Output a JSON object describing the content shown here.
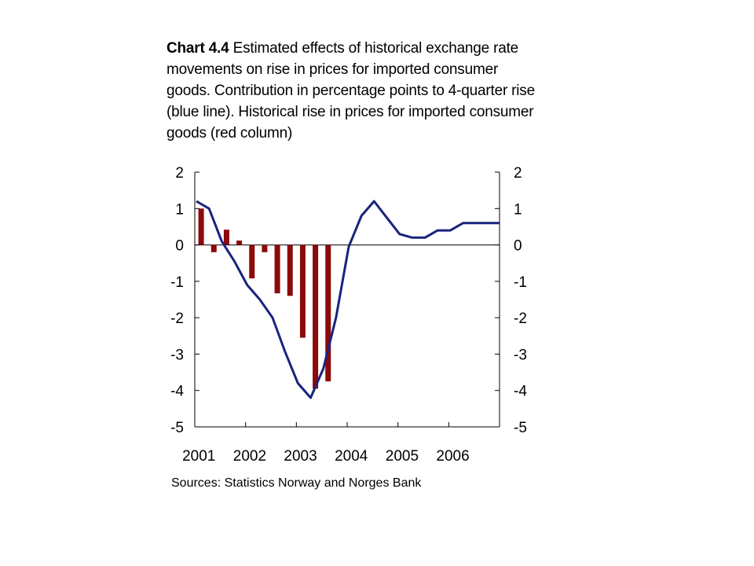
{
  "title": {
    "prefix": "Chart 4.4",
    "text": " Estimated effects of historical exchange rate movements on rise in prices for imported consumer goods. Contribution in percentage points to 4-quarter rise (blue line). Historical rise in prices for imported consumer goods (red column)"
  },
  "source": "Sources: Statistics Norway and Norges Bank",
  "chart_data": {
    "type": "bar+line",
    "x_tick_labels": [
      "2001",
      "2002",
      "2003",
      "2004",
      "2005",
      "2006"
    ],
    "y_left_ticks": [
      "2",
      "1",
      "0",
      "-1",
      "-2",
      "-3",
      "-4",
      "-5"
    ],
    "y_right_ticks": [
      "2",
      "1",
      "0",
      "-1",
      "-2",
      "-3",
      "-4",
      "-5"
    ],
    "ylim": [
      -5,
      2
    ],
    "quarters": [
      "2001Q1",
      "2001Q2",
      "2001Q3",
      "2001Q4",
      "2002Q1",
      "2002Q2",
      "2002Q3",
      "2002Q4",
      "2003Q1",
      "2003Q2",
      "2003Q3",
      "2003Q4",
      "2004Q1",
      "2004Q2",
      "2004Q3",
      "2004Q4",
      "2005Q1",
      "2005Q2",
      "2005Q3",
      "2005Q4",
      "2006Q1",
      "2006Q2",
      "2006Q3",
      "2006Q4"
    ],
    "series": [
      {
        "kind": "bar",
        "color": "#8b0a0a",
        "values": [
          1.0,
          -0.2,
          0.42,
          0.12,
          -0.92,
          -0.2,
          -1.33,
          -1.4,
          -2.55,
          -3.95,
          -3.75,
          null,
          null,
          null,
          null,
          null,
          null,
          null,
          null,
          null,
          null,
          null,
          null,
          null
        ]
      },
      {
        "kind": "line",
        "color": "#1a237e",
        "values": [
          1.2,
          1.0,
          0.1,
          -0.45,
          -1.1,
          -1.5,
          -2.0,
          -2.95,
          -3.8,
          -4.2,
          -3.4,
          -2.0,
          -0.05,
          0.8,
          1.2,
          0.75,
          0.3,
          0.2,
          0.2,
          0.4,
          0.4,
          0.6,
          0.6,
          0.6
        ]
      }
    ]
  }
}
